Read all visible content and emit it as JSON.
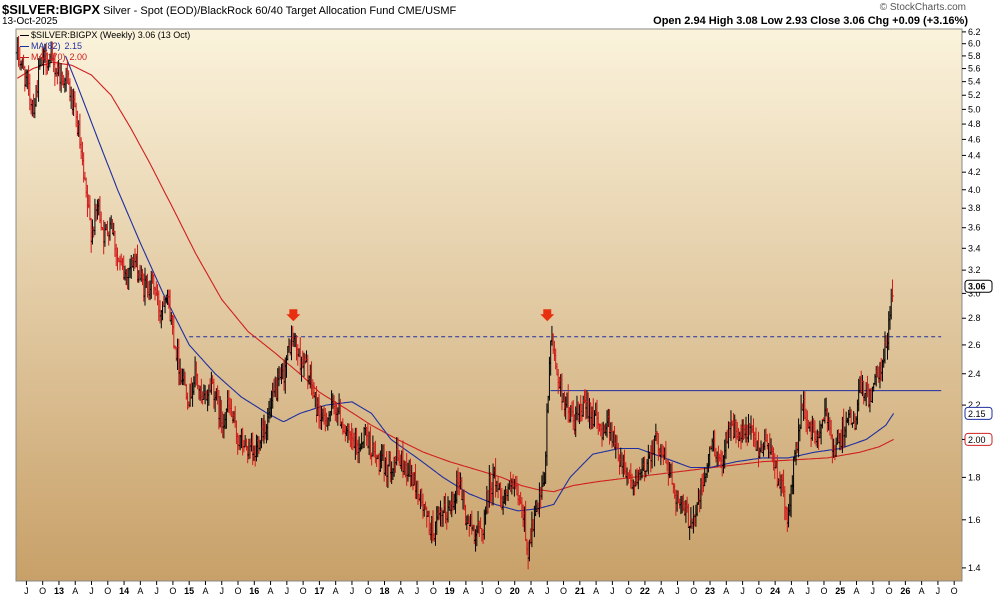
{
  "header": {
    "symbol": "$SILVER:BIGPX",
    "description": "Silver - Spot (EOD)/BlackRock 60/40 Target Allocation Fund",
    "exchange": "CME/USMF",
    "date": "13-Oct-2025",
    "ohlc_text": "Open 2.94  High 3.08  Low 2.93  Close 3.06  Chg +0.09 (+3.16%)",
    "watermark": "© StockCharts.com"
  },
  "legend": [
    {
      "label": "$SILVER:BIGPX (Weekly) 3.06 (13 Oct)",
      "color": "#000000"
    },
    {
      "label": "MA(82)",
      "value": "2.15",
      "color": "#1f2fa0"
    },
    {
      "label": "MA(170)",
      "value": "2.00",
      "color": "#cc1a1a"
    }
  ],
  "colors": {
    "up": "#000000",
    "down": "#d01818",
    "ma82": "#1f2fa0",
    "ma170": "#d02020",
    "bg_top": "#fbf3dc",
    "bg_bottom": "#c8a068",
    "arrow": "#e83010",
    "hline": "#1f2fa0"
  },
  "chart_data": {
    "type": "line",
    "scale": "log",
    "ylim": [
      1.35,
      6.25
    ],
    "xlim": [
      2012.35,
      2026.85
    ],
    "y_ticks": [
      1.4,
      1.6,
      1.8,
      2.0,
      2.2,
      2.4,
      2.6,
      2.8,
      3.0,
      3.2,
      3.4,
      3.6,
      3.8,
      4.0,
      4.2,
      4.4,
      4.6,
      4.8,
      5.0,
      5.2,
      5.4,
      5.6,
      5.8,
      6.0,
      6.2
    ],
    "x_year_labels": [
      "13",
      "14",
      "15",
      "16",
      "17",
      "18",
      "19",
      "20",
      "21",
      "22",
      "23",
      "24",
      "25",
      "26"
    ],
    "x_month_letters": [
      "J",
      "F",
      "M",
      "A",
      "M",
      "J",
      "J",
      "A",
      "S",
      "O",
      "N",
      "D"
    ],
    "price_anchors": [
      [
        2012.36,
        5.85
      ],
      [
        2012.45,
        5.6
      ],
      [
        2012.55,
        5.2
      ],
      [
        2012.62,
        5.05
      ],
      [
        2012.7,
        5.6
      ],
      [
        2012.8,
        5.8
      ],
      [
        2012.9,
        5.65
      ],
      [
        2013.0,
        5.55
      ],
      [
        2013.05,
        5.4
      ],
      [
        2013.1,
        5.55
      ],
      [
        2013.2,
        5.1
      ],
      [
        2013.3,
        4.7
      ],
      [
        2013.38,
        4.1
      ],
      [
        2013.5,
        3.55
      ],
      [
        2013.6,
        3.85
      ],
      [
        2013.7,
        3.5
      ],
      [
        2013.8,
        3.7
      ],
      [
        2013.9,
        3.3
      ],
      [
        2014.0,
        3.15
      ],
      [
        2014.15,
        3.3
      ],
      [
        2014.3,
        3.05
      ],
      [
        2014.45,
        3.1
      ],
      [
        2014.55,
        2.85
      ],
      [
        2014.65,
        3.05
      ],
      [
        2014.75,
        2.7
      ],
      [
        2014.85,
        2.45
      ],
      [
        2015.0,
        2.25
      ],
      [
        2015.1,
        2.4
      ],
      [
        2015.2,
        2.2
      ],
      [
        2015.35,
        2.35
      ],
      [
        2015.5,
        2.1
      ],
      [
        2015.6,
        2.2
      ],
      [
        2015.75,
        2.0
      ],
      [
        2015.9,
        1.95
      ],
      [
        2016.0,
        1.9
      ],
      [
        2016.1,
        2.05
      ],
      [
        2016.2,
        2.1
      ],
      [
        2016.3,
        2.25
      ],
      [
        2016.45,
        2.4
      ],
      [
        2016.55,
        2.6
      ],
      [
        2016.6,
        2.65
      ],
      [
        2016.7,
        2.5
      ],
      [
        2016.8,
        2.45
      ],
      [
        2016.95,
        2.2
      ],
      [
        2017.05,
        2.1
      ],
      [
        2017.15,
        2.15
      ],
      [
        2017.25,
        2.2
      ],
      [
        2017.35,
        2.1
      ],
      [
        2017.45,
        2.0
      ],
      [
        2017.6,
        1.95
      ],
      [
        2017.7,
        2.05
      ],
      [
        2017.85,
        1.9
      ],
      [
        2018.0,
        1.85
      ],
      [
        2018.2,
        1.9
      ],
      [
        2018.35,
        1.85
      ],
      [
        2018.5,
        1.75
      ],
      [
        2018.65,
        1.6
      ],
      [
        2018.75,
        1.55
      ],
      [
        2018.85,
        1.6
      ],
      [
        2019.0,
        1.65
      ],
      [
        2019.15,
        1.8
      ],
      [
        2019.25,
        1.6
      ],
      [
        2019.4,
        1.55
      ],
      [
        2019.5,
        1.55
      ],
      [
        2019.6,
        1.75
      ],
      [
        2019.7,
        1.8
      ],
      [
        2019.8,
        1.7
      ],
      [
        2019.95,
        1.75
      ],
      [
        2020.05,
        1.7
      ],
      [
        2020.15,
        1.6
      ],
      [
        2020.2,
        1.45
      ],
      [
        2020.25,
        1.55
      ],
      [
        2020.35,
        1.65
      ],
      [
        2020.45,
        1.75
      ],
      [
        2020.55,
        2.65
      ],
      [
        2020.62,
        2.5
      ],
      [
        2020.7,
        2.3
      ],
      [
        2020.8,
        2.2
      ],
      [
        2020.9,
        2.1
      ],
      [
        2021.0,
        2.15
      ],
      [
        2021.15,
        2.2
      ],
      [
        2021.3,
        2.05
      ],
      [
        2021.45,
        2.1
      ],
      [
        2021.55,
        1.95
      ],
      [
        2021.7,
        1.85
      ],
      [
        2021.85,
        1.75
      ],
      [
        2022.0,
        1.85
      ],
      [
        2022.15,
        2.0
      ],
      [
        2022.25,
        1.95
      ],
      [
        2022.4,
        1.8
      ],
      [
        2022.55,
        1.65
      ],
      [
        2022.7,
        1.6
      ],
      [
        2022.8,
        1.65
      ],
      [
        2022.95,
        1.85
      ],
      [
        2023.05,
        2.0
      ],
      [
        2023.15,
        1.85
      ],
      [
        2023.3,
        2.1
      ],
      [
        2023.45,
        2.0
      ],
      [
        2023.6,
        2.05
      ],
      [
        2023.75,
        1.95
      ],
      [
        2023.9,
        2.0
      ],
      [
        2024.0,
        1.85
      ],
      [
        2024.1,
        1.75
      ],
      [
        2024.2,
        1.6
      ],
      [
        2024.3,
        1.9
      ],
      [
        2024.42,
        2.2
      ],
      [
        2024.5,
        2.1
      ],
      [
        2024.6,
        2.0
      ],
      [
        2024.7,
        2.05
      ],
      [
        2024.8,
        2.15
      ],
      [
        2024.9,
        1.95
      ],
      [
        2025.0,
        2.0
      ],
      [
        2025.1,
        2.15
      ],
      [
        2025.2,
        2.05
      ],
      [
        2025.3,
        2.3
      ],
      [
        2025.45,
        2.25
      ],
      [
        2025.55,
        2.35
      ],
      [
        2025.65,
        2.45
      ],
      [
        2025.72,
        2.65
      ],
      [
        2025.78,
        2.95
      ],
      [
        2025.82,
        3.06
      ]
    ],
    "ma82_anchors": [
      [
        2013.1,
        5.8
      ],
      [
        2013.3,
        5.3
      ],
      [
        2013.6,
        4.6
      ],
      [
        2013.9,
        4.0
      ],
      [
        2014.25,
        3.45
      ],
      [
        2014.6,
        3.0
      ],
      [
        2015.0,
        2.6
      ],
      [
        2015.4,
        2.4
      ],
      [
        2015.8,
        2.25
      ],
      [
        2016.2,
        2.15
      ],
      [
        2016.45,
        2.1
      ],
      [
        2016.7,
        2.15
      ],
      [
        2017.1,
        2.2
      ],
      [
        2017.5,
        2.22
      ],
      [
        2017.8,
        2.15
      ],
      [
        2018.1,
        2.0
      ],
      [
        2018.5,
        1.9
      ],
      [
        2018.9,
        1.8
      ],
      [
        2019.3,
        1.72
      ],
      [
        2019.7,
        1.67
      ],
      [
        2020.05,
        1.64
      ],
      [
        2020.35,
        1.65
      ],
      [
        2020.6,
        1.67
      ],
      [
        2020.85,
        1.8
      ],
      [
        2021.2,
        1.92
      ],
      [
        2021.6,
        1.95
      ],
      [
        2021.9,
        1.95
      ],
      [
        2022.3,
        1.9
      ],
      [
        2022.7,
        1.85
      ],
      [
        2023.0,
        1.85
      ],
      [
        2023.4,
        1.88
      ],
      [
        2023.8,
        1.9
      ],
      [
        2024.2,
        1.9
      ],
      [
        2024.6,
        1.93
      ],
      [
        2025.0,
        1.95
      ],
      [
        2025.4,
        2.0
      ],
      [
        2025.7,
        2.08
      ],
      [
        2025.82,
        2.15
      ]
    ],
    "ma170_anchors": [
      [
        2012.36,
        5.45
      ],
      [
        2012.6,
        5.6
      ],
      [
        2012.9,
        5.7
      ],
      [
        2013.2,
        5.65
      ],
      [
        2013.5,
        5.5
      ],
      [
        2013.8,
        5.2
      ],
      [
        2014.1,
        4.75
      ],
      [
        2014.4,
        4.3
      ],
      [
        2014.75,
        3.8
      ],
      [
        2015.1,
        3.35
      ],
      [
        2015.5,
        2.95
      ],
      [
        2015.9,
        2.7
      ],
      [
        2016.3,
        2.55
      ],
      [
        2016.7,
        2.4
      ],
      [
        2017.0,
        2.28
      ],
      [
        2017.4,
        2.18
      ],
      [
        2017.8,
        2.08
      ],
      [
        2018.2,
        2.0
      ],
      [
        2018.6,
        1.93
      ],
      [
        2019.0,
        1.88
      ],
      [
        2019.4,
        1.84
      ],
      [
        2019.8,
        1.8
      ],
      [
        2020.1,
        1.76
      ],
      [
        2020.35,
        1.74
      ],
      [
        2020.6,
        1.73
      ],
      [
        2020.9,
        1.76
      ],
      [
        2021.3,
        1.78
      ],
      [
        2021.8,
        1.8
      ],
      [
        2022.3,
        1.82
      ],
      [
        2022.8,
        1.84
      ],
      [
        2023.3,
        1.86
      ],
      [
        2023.8,
        1.88
      ],
      [
        2024.3,
        1.89
      ],
      [
        2024.8,
        1.9
      ],
      [
        2025.3,
        1.93
      ],
      [
        2025.6,
        1.96
      ],
      [
        2025.82,
        2.0
      ]
    ],
    "resistance_dashed": {
      "value": 2.66,
      "x_start": 2015.0,
      "x_end": 2026.55
    },
    "support_solid": {
      "value": 2.29,
      "x_start": 2020.55,
      "x_end": 2026.55
    },
    "arrows": [
      [
        2016.6,
        2.8
      ],
      [
        2020.5,
        2.8
      ]
    ],
    "last_price_label": "3.06",
    "ma82_label": "2.15",
    "ma170_label": "2.00"
  }
}
